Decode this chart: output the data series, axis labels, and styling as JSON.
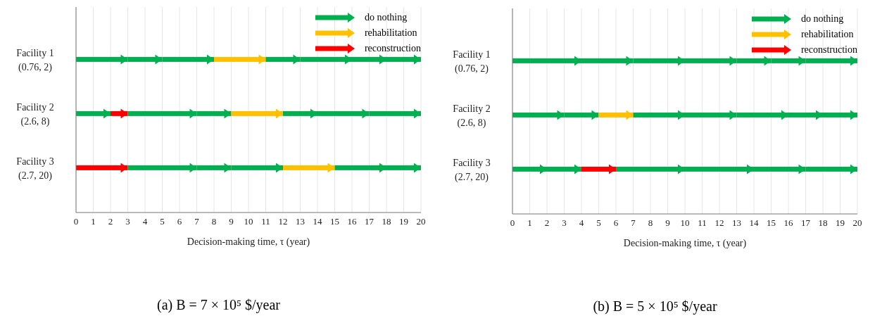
{
  "chart_data": [
    {
      "type": "bar",
      "orientation": "horizontal",
      "stacked": true,
      "categories": [
        "Facility 1\n(0.76, 2)",
        "Facility 2\n(2.6, 8)",
        "Facility 3\n(2.7, 20)"
      ],
      "xlabel": "Decision-making time, τ (year)",
      "xlim": [
        0,
        20
      ],
      "xticks": [
        0,
        1,
        2,
        3,
        4,
        5,
        6,
        7,
        8,
        9,
        10,
        11,
        12,
        13,
        14,
        15,
        16,
        17,
        18,
        19,
        20
      ],
      "grid": "x",
      "legend": "top right",
      "annotations": [
        "(a) B = 7 × 10⁵ $/year"
      ],
      "series": [
        {
          "name": "do nothing",
          "color": "#00b050",
          "values": [
            null,
            null,
            null
          ]
        },
        {
          "name": "rehabilitation",
          "color": "#ffc000",
          "values": [
            null,
            null,
            null
          ]
        },
        {
          "name": "reconstruction",
          "color": "#ff0000",
          "values": [
            null,
            null,
            null
          ]
        },
        {
          "colors": [
            "#00b050",
            "#00b050",
            "#ff0000"
          ],
          "values": [
            3,
            2,
            3
          ]
        },
        {
          "colors": [
            "#00b050",
            "#ff0000",
            "#00b050"
          ],
          "values": [
            2,
            1,
            4
          ]
        },
        {
          "colors": [
            "#00b050",
            "#00b050",
            "#00b050"
          ],
          "values": [
            3,
            4,
            2
          ]
        },
        {
          "colors": [
            "#ffc000",
            "#00b050",
            "#00b050"
          ],
          "values": [
            3,
            2,
            3
          ]
        },
        {
          "colors": [
            "#00b050",
            "#ffc000",
            "#ffc000"
          ],
          "values": [
            2,
            3,
            3
          ]
        },
        {
          "colors": [
            "#00b050",
            "#00b050",
            "#00b050"
          ],
          "values": [
            3,
            2,
            3
          ]
        },
        {
          "colors": [
            "#00b050",
            "#00b050",
            "#00b050"
          ],
          "values": [
            2,
            3,
            2
          ]
        },
        {
          "colors": [
            "#00b050",
            "#00b050",
            null
          ],
          "values": [
            2,
            3,
            null
          ]
        }
      ]
    },
    {
      "type": "bar",
      "orientation": "horizontal",
      "stacked": true,
      "categories": [
        "Facility 1\n(0.76, 2)",
        "Facility 2\n(2.6, 8)",
        "Facility 3\n(2.7, 20)"
      ],
      "xlabel": "Decision-making time, τ (year)",
      "xlim": [
        0,
        20
      ],
      "xticks": [
        0,
        1,
        2,
        3,
        4,
        5,
        6,
        7,
        8,
        9,
        10,
        11,
        12,
        13,
        14,
        15,
        16,
        17,
        18,
        19,
        20
      ],
      "grid": "x",
      "legend": "top right",
      "annotations": [
        "(b) B = 5 × 10⁵ $/year"
      ],
      "series": [
        {
          "name": "do nothing",
          "color": "#00b050",
          "values": [
            null,
            null,
            null
          ]
        },
        {
          "name": "rehabilitation",
          "color": "#ffc000",
          "values": [
            null,
            null,
            null
          ]
        },
        {
          "name": "reconstruction",
          "color": "#ff0000",
          "values": [
            null,
            null,
            null
          ]
        },
        {
          "colors": [
            "#00b050",
            "#00b050",
            "#00b050"
          ],
          "values": [
            4,
            3,
            2
          ]
        },
        {
          "colors": [
            "#00b050",
            "#00b050",
            "#00b050"
          ],
          "values": [
            3,
            2,
            2
          ]
        },
        {
          "colors": [
            "#00b050",
            "#ffc000",
            "#ff0000"
          ],
          "values": [
            3,
            2,
            2
          ]
        },
        {
          "colors": [
            "#00b050",
            "#00b050",
            "#00b050"
          ],
          "values": [
            3,
            3,
            4
          ]
        },
        {
          "colors": [
            "#00b050",
            "#00b050",
            "#00b050"
          ],
          "values": [
            2,
            3,
            4
          ]
        },
        {
          "colors": [
            "#00b050",
            "#00b050",
            "#00b050"
          ],
          "values": [
            2,
            3,
            3
          ]
        },
        {
          "colors": [
            "#00b050",
            "#00b050",
            "#00b050"
          ],
          "values": [
            3,
            2,
            3
          ]
        },
        {
          "colors": [
            null,
            "#00b050",
            null
          ],
          "values": [
            null,
            2,
            null
          ]
        }
      ]
    }
  ]
}
